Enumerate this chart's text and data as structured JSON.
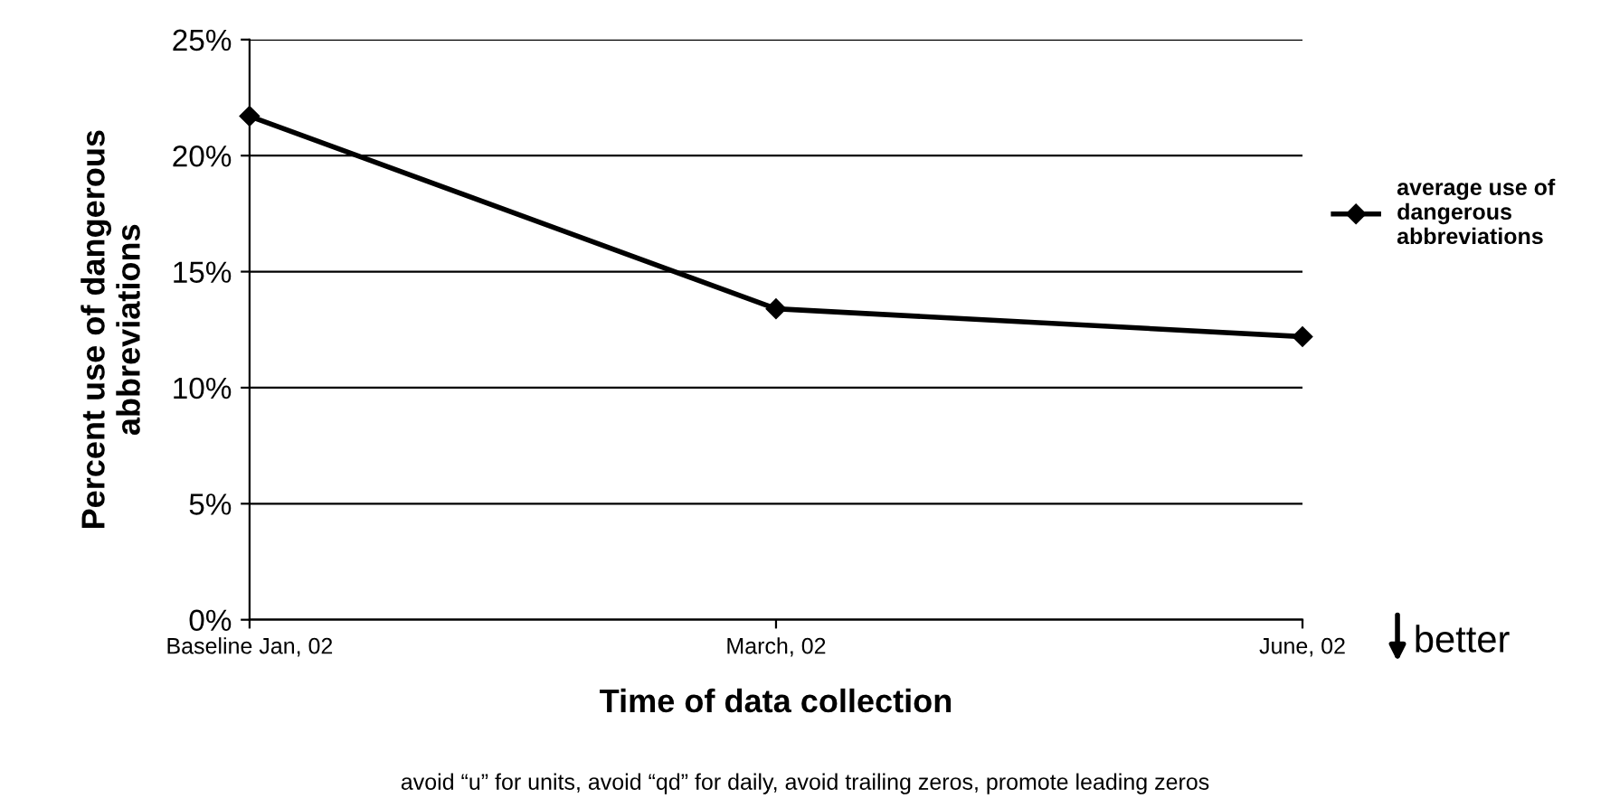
{
  "chart_data": {
    "type": "line",
    "xlabel": "Time of data collection",
    "ylabel": "Percent use of dangerous\nabbreviations",
    "categories": [
      "Baseline Jan, 02",
      "March, 02",
      "June, 02"
    ],
    "series": [
      {
        "name": "average use of\ndangerous\nabbreviations",
        "color": "#000000",
        "values": [
          21.7,
          13.4,
          12.2
        ]
      }
    ],
    "ylim": [
      0,
      25
    ],
    "yticks": [
      {
        "value": 0,
        "label": "0%"
      },
      {
        "value": 5,
        "label": "5%"
      },
      {
        "value": 10,
        "label": "10%"
      },
      {
        "value": 15,
        "label": "15%"
      },
      {
        "value": 20,
        "label": "20%"
      },
      {
        "value": 25,
        "label": "25%"
      }
    ],
    "grid": "y",
    "legend": "right",
    "marker": "diamond",
    "line_style": "solid",
    "annotations": [
      "better",
      "avoid “u” for units, avoid “qd” for daily, avoid trailing zeros, promote leading zeros"
    ]
  }
}
